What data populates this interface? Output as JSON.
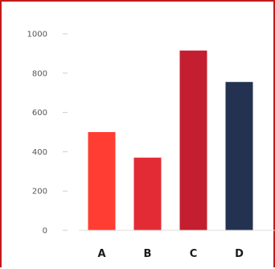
{
  "chart_data": {
    "type": "bar",
    "categories": [
      "A",
      "B",
      "C",
      "D"
    ],
    "values": [
      500,
      370,
      915,
      755
    ],
    "ylim": [
      0,
      1000
    ],
    "yticks": [
      0,
      200,
      400,
      600,
      800,
      1000
    ],
    "grid": false,
    "title": "",
    "xlabel": "",
    "ylabel": "",
    "colors": [
      "#ff3d33",
      "#e32b36",
      "#c41f30",
      "#243252"
    ]
  }
}
